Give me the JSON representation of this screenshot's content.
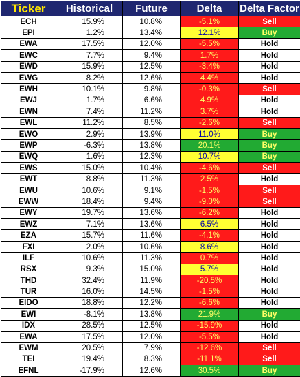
{
  "headers": {
    "ticker": "Ticker",
    "historical": "Historical",
    "future": "Future",
    "delta": "Delta",
    "delta_factor": "Delta Factor"
  },
  "colors": {
    "header_bg": "#1f2770",
    "ticker_header_text": "#ffe600",
    "red": "#ff1a1a",
    "yellow": "#ffff33",
    "green": "#22aa33"
  },
  "rows": [
    {
      "ticker": "ECH",
      "historical": "15.9%",
      "future": "10.8%",
      "delta": "-5.1%",
      "delta_color": "red",
      "factor": "Sell"
    },
    {
      "ticker": "EPI",
      "historical": "1.2%",
      "future": "13.4%",
      "delta": "12.1%",
      "delta_color": "yellow",
      "factor": "Buy"
    },
    {
      "ticker": "EWA",
      "historical": "17.5%",
      "future": "12.0%",
      "delta": "-5.5%",
      "delta_color": "red",
      "factor": "Hold"
    },
    {
      "ticker": "EWC",
      "historical": "7.7%",
      "future": "9.4%",
      "delta": "1.7%",
      "delta_color": "red",
      "factor": "Hold"
    },
    {
      "ticker": "EWD",
      "historical": "15.9%",
      "future": "12.5%",
      "delta": "-3.4%",
      "delta_color": "red",
      "factor": "Hold"
    },
    {
      "ticker": "EWG",
      "historical": "8.2%",
      "future": "12.6%",
      "delta": "4.4%",
      "delta_color": "red",
      "factor": "Hold"
    },
    {
      "ticker": "EWH",
      "historical": "10.1%",
      "future": "9.8%",
      "delta": "-0.3%",
      "delta_color": "red",
      "factor": "Sell"
    },
    {
      "ticker": "EWJ",
      "historical": "1.7%",
      "future": "6.6%",
      "delta": "4.9%",
      "delta_color": "red",
      "factor": "Hold"
    },
    {
      "ticker": "EWN",
      "historical": "7.4%",
      "future": "11.2%",
      "delta": "3.7%",
      "delta_color": "red",
      "factor": "Hold"
    },
    {
      "ticker": "EWL",
      "historical": "11.2%",
      "future": "8.5%",
      "delta": "-2.6%",
      "delta_color": "red",
      "factor": "Sell"
    },
    {
      "ticker": "EWO",
      "historical": "2.9%",
      "future": "13.9%",
      "delta": "11.0%",
      "delta_color": "yellow",
      "factor": "Buy"
    },
    {
      "ticker": "EWP",
      "historical": "-6.3%",
      "future": "13.8%",
      "delta": "20.1%",
      "delta_color": "green",
      "factor": "Buy"
    },
    {
      "ticker": "EWQ",
      "historical": "1.6%",
      "future": "12.3%",
      "delta": "10.7%",
      "delta_color": "yellow",
      "factor": "Buy"
    },
    {
      "ticker": "EWS",
      "historical": "15.0%",
      "future": "10.4%",
      "delta": "-4.6%",
      "delta_color": "red",
      "factor": "Sell"
    },
    {
      "ticker": "EWT",
      "historical": "8.8%",
      "future": "11.3%",
      "delta": "2.5%",
      "delta_color": "red",
      "factor": "Hold"
    },
    {
      "ticker": "EWU",
      "historical": "10.6%",
      "future": "9.1%",
      "delta": "-1.5%",
      "delta_color": "red",
      "factor": "Sell"
    },
    {
      "ticker": "EWW",
      "historical": "18.4%",
      "future": "9.4%",
      "delta": "-9.0%",
      "delta_color": "red",
      "factor": "Sell"
    },
    {
      "ticker": "EWY",
      "historical": "19.7%",
      "future": "13.6%",
      "delta": "-6.2%",
      "delta_color": "red",
      "factor": "Hold"
    },
    {
      "ticker": "EWZ",
      "historical": "7.1%",
      "future": "13.6%",
      "delta": "6.5%",
      "delta_color": "yellow",
      "factor": "Hold"
    },
    {
      "ticker": "EZA",
      "historical": "15.7%",
      "future": "11.6%",
      "delta": "-4.1%",
      "delta_color": "red",
      "factor": "Hold"
    },
    {
      "ticker": "FXI",
      "historical": "2.0%",
      "future": "10.6%",
      "delta": "8.6%",
      "delta_color": "yellow",
      "factor": "Hold"
    },
    {
      "ticker": "ILF",
      "historical": "10.6%",
      "future": "11.3%",
      "delta": "0.7%",
      "delta_color": "red",
      "factor": "Hold"
    },
    {
      "ticker": "RSX",
      "historical": "9.3%",
      "future": "15.0%",
      "delta": "5.7%",
      "delta_color": "yellow",
      "factor": "Hold"
    },
    {
      "ticker": "THD",
      "historical": "32.4%",
      "future": "11.9%",
      "delta": "-20.5%",
      "delta_color": "red",
      "factor": "Hold"
    },
    {
      "ticker": "TUR",
      "historical": "16.0%",
      "future": "14.5%",
      "delta": "-1.5%",
      "delta_color": "red",
      "factor": "Hold"
    },
    {
      "ticker": "EIDO",
      "historical": "18.8%",
      "future": "12.2%",
      "delta": "-6.6%",
      "delta_color": "red",
      "factor": "Hold"
    },
    {
      "ticker": "EWI",
      "historical": "-8.1%",
      "future": "13.8%",
      "delta": "21.9%",
      "delta_color": "green",
      "factor": "Buy"
    },
    {
      "ticker": "IDX",
      "historical": "28.5%",
      "future": "12.5%",
      "delta": "-15.9%",
      "delta_color": "red",
      "factor": "Hold"
    },
    {
      "ticker": "EWA",
      "historical": "17.5%",
      "future": "12.0%",
      "delta": "-5.5%",
      "delta_color": "red",
      "factor": "Hold"
    },
    {
      "ticker": "EWM",
      "historical": "20.5%",
      "future": "7.9%",
      "delta": "-12.6%",
      "delta_color": "red",
      "factor": "Sell"
    },
    {
      "ticker": "TEI",
      "historical": "19.4%",
      "future": "8.3%",
      "delta": "-11.1%",
      "delta_color": "red",
      "factor": "Sell"
    },
    {
      "ticker": "EFNL",
      "historical": "-17.9%",
      "future": "12.6%",
      "delta": "30.5%",
      "delta_color": "green",
      "factor": "Buy"
    }
  ]
}
